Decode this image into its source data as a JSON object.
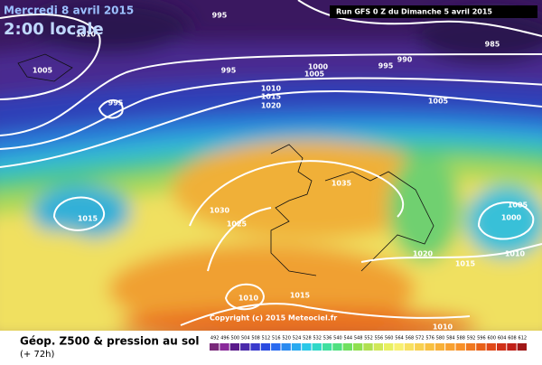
{
  "header": {
    "title": "Mercredi 8 avril 2015",
    "subtitle": "2:00 locale",
    "run": "Run GFS 0 Z du Dimanche 5 avril 2015"
  },
  "isobar_labels": [
    "1010",
    "995",
    "1005",
    "995",
    "995",
    "1000",
    "1005",
    "990",
    "995",
    "985",
    "1010",
    "1015",
    "1020",
    "1005",
    "1035",
    "1030",
    "1025",
    "1015",
    "1005",
    "1000",
    "1020",
    "1015",
    "1010",
    "1010",
    "1015",
    "1010"
  ],
  "copyright": "Copyright (c) 2015 Meteociel.fr",
  "footer": {
    "title": "Géop. Z500 & pression au sol",
    "lead": "(+ 72h)"
  },
  "scale": {
    "values": [
      492,
      496,
      500,
      504,
      508,
      512,
      516,
      520,
      524,
      528,
      532,
      536,
      540,
      544,
      548,
      552,
      556,
      560,
      564,
      568,
      572,
      576,
      580,
      584,
      588,
      592,
      596,
      600,
      604,
      608,
      612
    ],
    "colors": [
      "#7a2a7a",
      "#8a2a9a",
      "#5a1a8a",
      "#4a2aaa",
      "#3a3acc",
      "#2a4ae0",
      "#2a6af0",
      "#2a8af0",
      "#2aaaf0",
      "#2ac8e8",
      "#30d8c8",
      "#40e0a0",
      "#50e080",
      "#70e060",
      "#90e050",
      "#b0e050",
      "#d0e858",
      "#e8f060",
      "#f8f070",
      "#f8e060",
      "#f8d050",
      "#f8c040",
      "#f8b038",
      "#f8a030",
      "#f89028",
      "#f07820",
      "#e86018",
      "#e04818",
      "#d03018",
      "#c02018",
      "#a01818"
    ]
  }
}
